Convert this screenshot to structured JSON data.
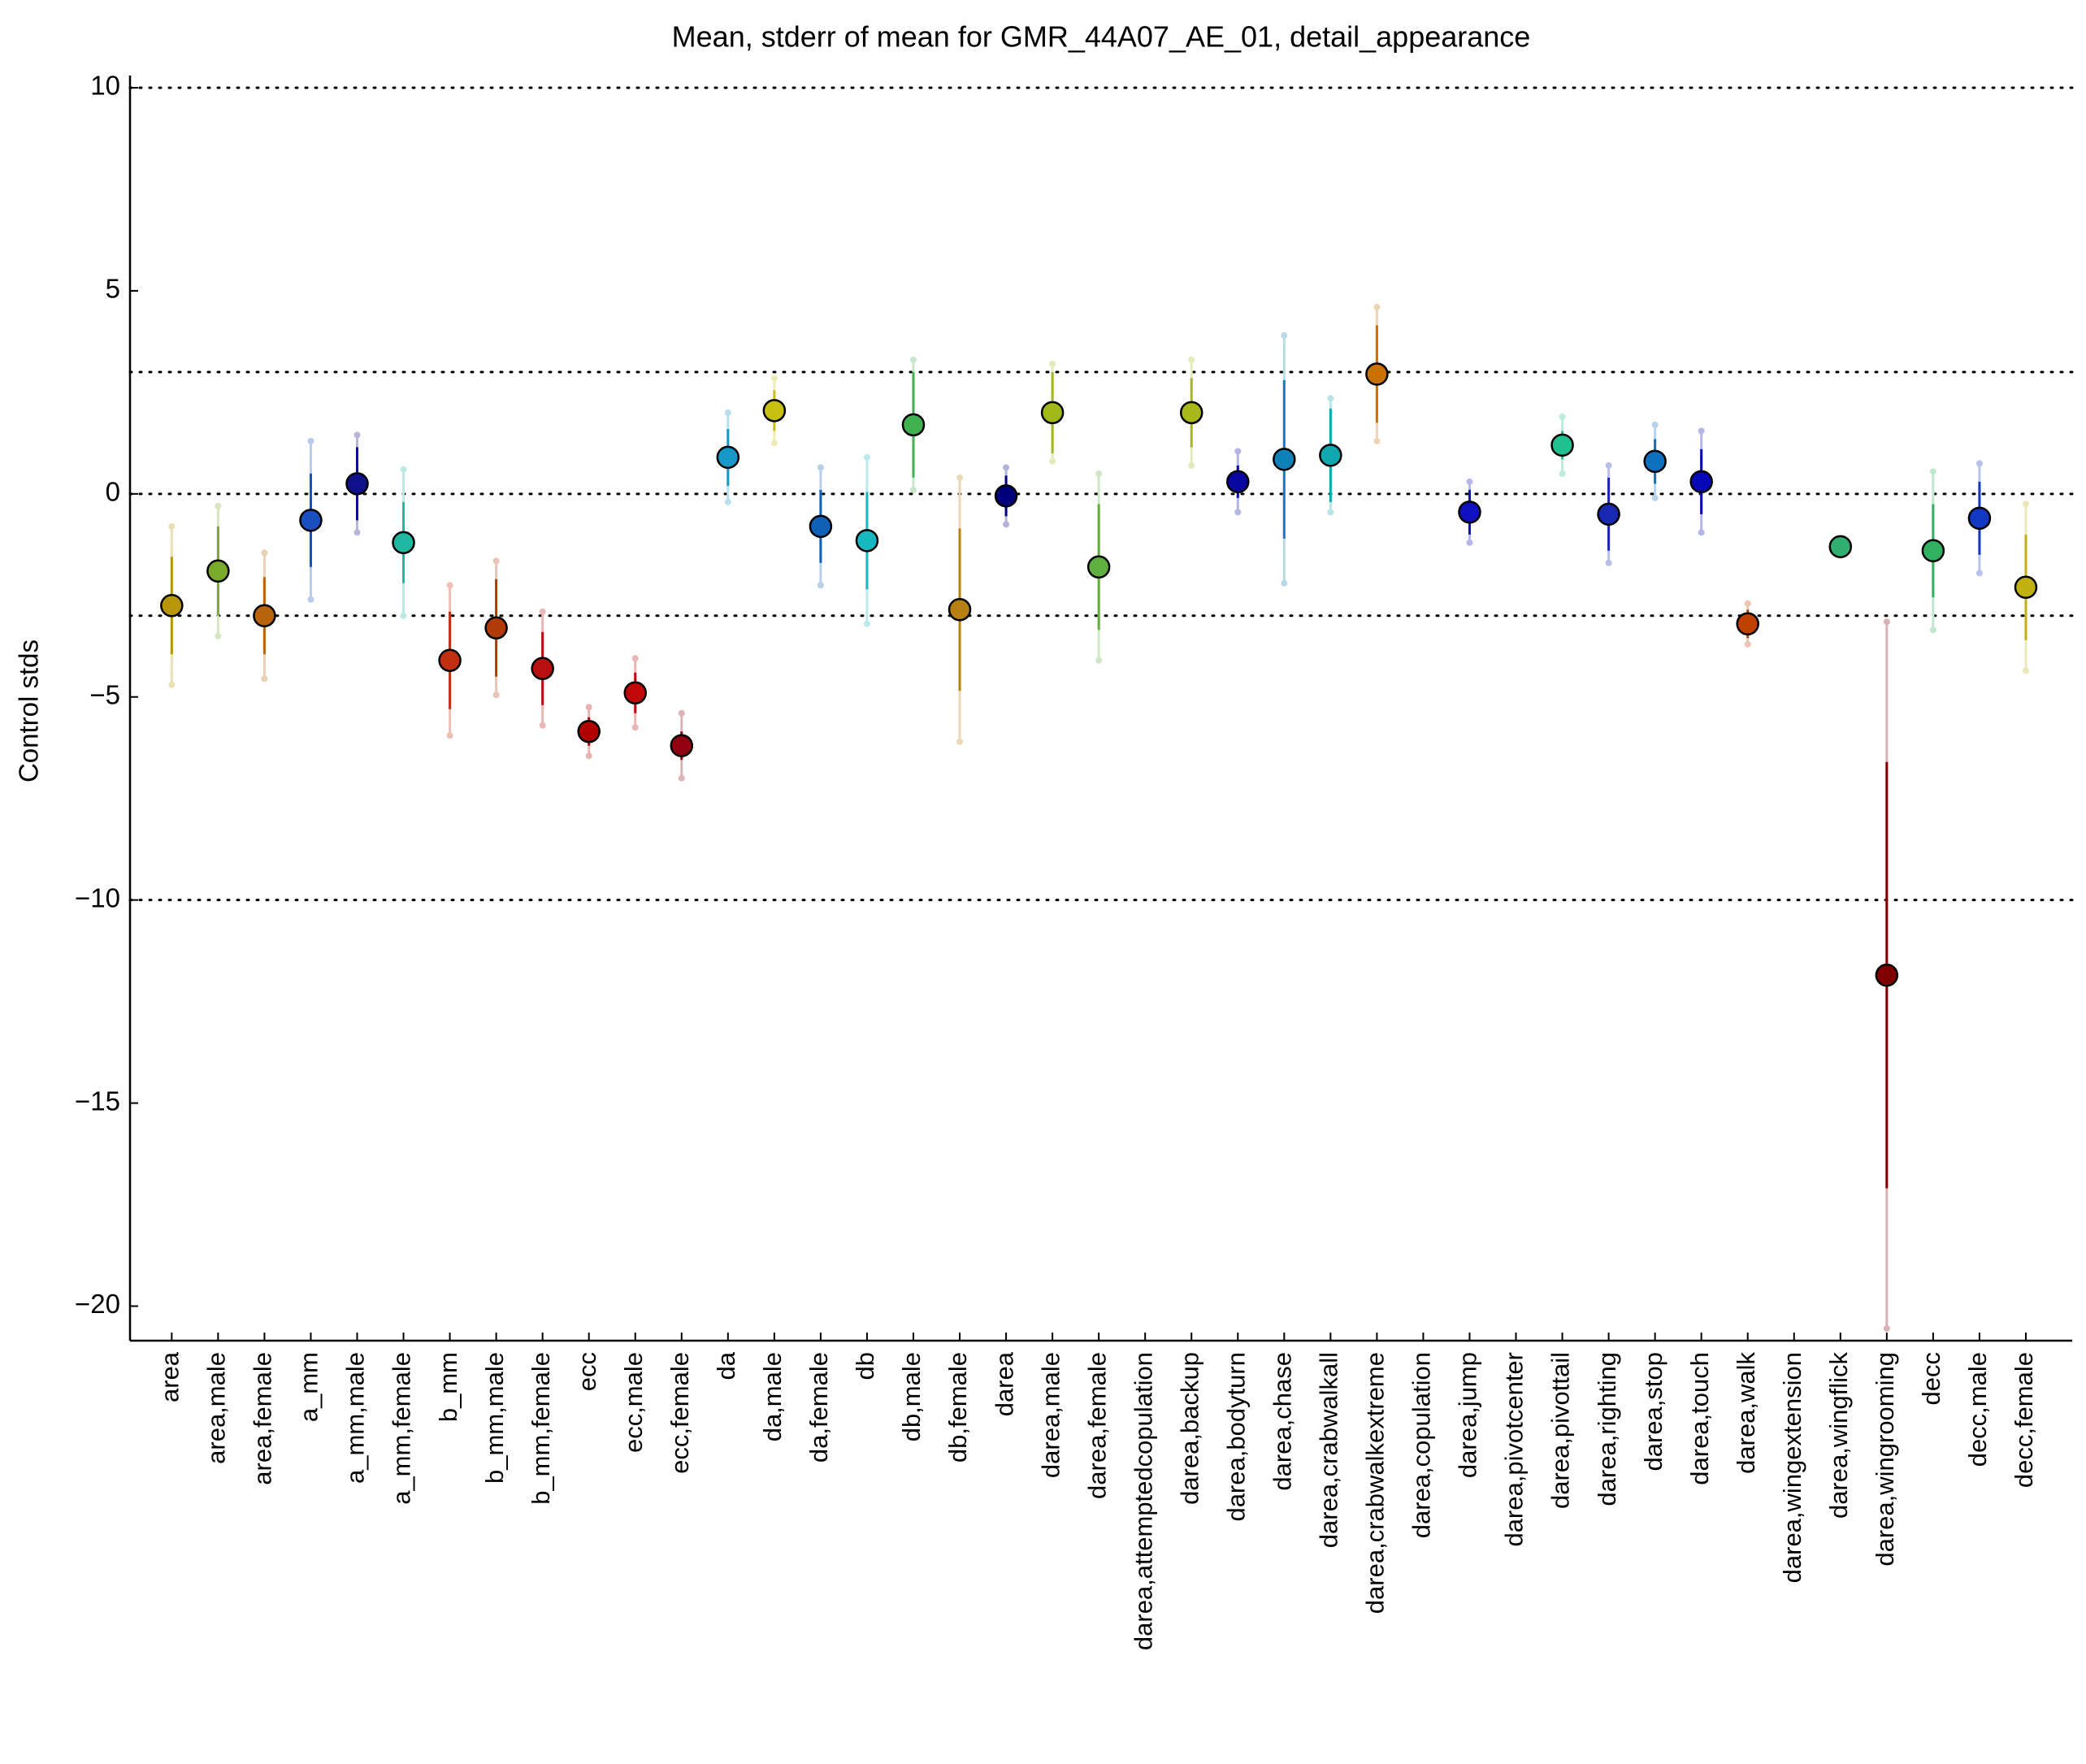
{
  "chart_data": {
    "type": "errorbar",
    "title": "Mean, stderr of mean for GMR_44A07_AE_01, detail_appearance",
    "ylabel": "Control stds",
    "categories": [
      "area",
      "area,male",
      "area,female",
      "a_mm",
      "a_mm,male",
      "a_mm,female",
      "b_mm",
      "b_mm,male",
      "b_mm,female",
      "ecc",
      "ecc,male",
      "ecc,female",
      "da",
      "da,male",
      "da,female",
      "db",
      "db,male",
      "db,female",
      "darea",
      "darea,male",
      "darea,female",
      "darea,attemptedcopulation",
      "darea,backup",
      "darea,bodyturn",
      "darea,chase",
      "darea,crabwalkall",
      "darea,crabwalkextreme",
      "darea,copulation",
      "darea,jump",
      "darea,pivotcenter",
      "darea,pivottail",
      "darea,righting",
      "darea,stop",
      "darea,touch",
      "darea,walk",
      "darea,wingextension",
      "darea,wingflick",
      "darea,wingrooming",
      "decc",
      "decc,male",
      "decc,female"
    ],
    "values": [
      -2.75,
      -1.9,
      -3.0,
      -0.65,
      0.25,
      -1.2,
      -4.1,
      -3.3,
      -4.3,
      -5.85,
      -4.9,
      -6.2,
      0.9,
      2.05,
      -0.8,
      -1.15,
      1.7,
      -2.85,
      -0.05,
      2.0,
      -1.8,
      null,
      2.0,
      0.3,
      0.85,
      0.95,
      2.95,
      null,
      -0.45,
      null,
      1.2,
      -0.5,
      0.8,
      0.3,
      -3.2,
      null,
      -1.3,
      -11.85,
      -1.4,
      -0.6,
      -2.3
    ],
    "errors": [
      1.2,
      1.1,
      0.95,
      1.15,
      0.9,
      1.0,
      1.2,
      1.2,
      0.9,
      0.35,
      0.5,
      0.35,
      0.7,
      0.5,
      0.9,
      1.2,
      1.3,
      2.0,
      0.5,
      1.0,
      1.55,
      null,
      0.85,
      0.4,
      1.95,
      1.15,
      1.2,
      null,
      0.55,
      null,
      0.35,
      0.9,
      0.55,
      0.8,
      0.35,
      null,
      0.1,
      5.25,
      1.15,
      0.9,
      1.3
    ],
    "outer": [
      1.95,
      1.6,
      1.55,
      1.95,
      1.2,
      1.8,
      1.85,
      1.65,
      1.4,
      0.6,
      0.85,
      0.8,
      1.1,
      0.8,
      1.45,
      2.05,
      1.6,
      3.25,
      0.7,
      1.2,
      2.3,
      null,
      1.3,
      0.75,
      3.05,
      1.4,
      1.65,
      null,
      0.75,
      null,
      0.7,
      1.2,
      0.9,
      1.25,
      0.5,
      null,
      0.1,
      8.7,
      1.95,
      1.35,
      2.05
    ],
    "colors": [
      "#b8960c",
      "#7aaa2a",
      "#b8640c",
      "#1a4fc0",
      "#10108a",
      "#20b8a0",
      "#c03010",
      "#b03a08",
      "#b81010",
      "#b00000",
      "#c00808",
      "#900010",
      "#1898c8",
      "#c8c010",
      "#1060b8",
      "#18b8c0",
      "#40b050",
      "#b88010",
      "#00007a",
      "#a0b818",
      "#60b040",
      "#999999",
      "#a8b818",
      "#0808a0",
      "#1080b8",
      "#10a8b0",
      "#c87000",
      "#999999",
      "#1010c0",
      "#999999",
      "#20c090",
      "#1828b0",
      "#1070c0",
      "#0808b8",
      "#c04000",
      "#999999",
      "#30b070",
      "#800000",
      "#30b060",
      "#1038c0",
      "#c0b010"
    ],
    "ylim": [
      -20.85,
      10.3
    ],
    "yticks": [
      10,
      5,
      0,
      -5,
      -10,
      -15,
      -20
    ],
    "yticklabels": [
      "10",
      "5",
      "0",
      "−5",
      "−10",
      "−15",
      "−20"
    ],
    "hlines": [
      10,
      3,
      0,
      -3,
      -10
    ]
  }
}
